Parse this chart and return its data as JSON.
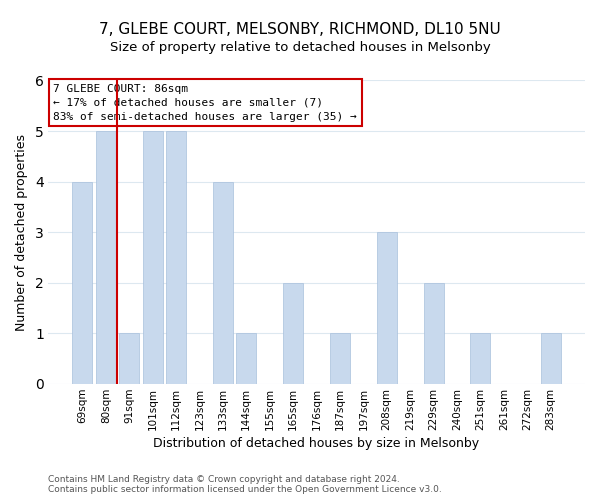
{
  "title": "7, GLEBE COURT, MELSONBY, RICHMOND, DL10 5NU",
  "subtitle": "Size of property relative to detached houses in Melsonby",
  "xlabel": "Distribution of detached houses by size in Melsonby",
  "ylabel": "Number of detached properties",
  "categories": [
    "69sqm",
    "80sqm",
    "91sqm",
    "101sqm",
    "112sqm",
    "123sqm",
    "133sqm",
    "144sqm",
    "155sqm",
    "165sqm",
    "176sqm",
    "187sqm",
    "197sqm",
    "208sqm",
    "219sqm",
    "229sqm",
    "240sqm",
    "251sqm",
    "261sqm",
    "272sqm",
    "283sqm"
  ],
  "values": [
    4,
    5,
    1,
    5,
    5,
    0,
    4,
    1,
    0,
    2,
    0,
    1,
    0,
    3,
    0,
    2,
    0,
    1,
    0,
    0,
    1
  ],
  "bar_color": "#c8d9ed",
  "bar_edge_color": "#a8c0dc",
  "vline_color": "#cc0000",
  "vline_x": 1.5,
  "annotation_title": "7 GLEBE COURT: 86sqm",
  "annotation_line1": "← 17% of detached houses are smaller (7)",
  "annotation_line2": "83% of semi-detached houses are larger (35) →",
  "annotation_box_facecolor": "#ffffff",
  "annotation_box_edgecolor": "#cc0000",
  "ylim": [
    0,
    6
  ],
  "yticks": [
    0,
    1,
    2,
    3,
    4,
    5,
    6
  ],
  "footer1": "Contains HM Land Registry data © Crown copyright and database right 2024.",
  "footer2": "Contains public sector information licensed under the Open Government Licence v3.0.",
  "background_color": "#ffffff",
  "grid_color": "#dde8f0",
  "title_fontsize": 11,
  "subtitle_fontsize": 9.5,
  "axis_label_fontsize": 9,
  "tick_fontsize": 7.5,
  "annotation_fontsize": 8,
  "footer_fontsize": 6.5
}
